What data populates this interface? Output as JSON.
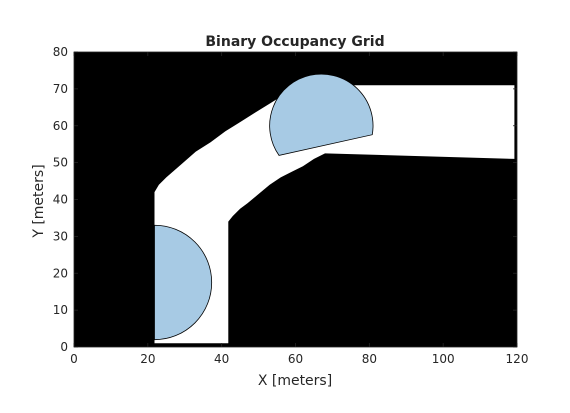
{
  "chart_data": {
    "type": "heatmap",
    "title": "Binary Occupancy Grid",
    "xlabel": "X [meters]",
    "ylabel": "Y [meters]",
    "xlim": [
      0,
      120
    ],
    "ylim": [
      0,
      80
    ],
    "x_ticks": [
      "0",
      "20",
      "40",
      "60",
      "80",
      "100",
      "120"
    ],
    "y_ticks": [
      "0",
      "10",
      "20",
      "30",
      "40",
      "50",
      "60",
      "70",
      "80"
    ],
    "grid": false,
    "legend": "none",
    "cell_values": {
      "occupied": 1,
      "free": 0
    },
    "colors": {
      "occupied": "#000000",
      "free": "#ffffff",
      "highlight": "#a7cae4",
      "axis": "#262626"
    },
    "free_regions": [
      {
        "name": "lower-vertical-corridor",
        "polygon": [
          [
            21.8,
            1
          ],
          [
            41.8,
            1
          ],
          [
            41.8,
            34
          ],
          [
            43,
            35.5
          ],
          [
            45,
            37.5
          ],
          [
            47,
            39
          ],
          [
            50,
            41.5
          ],
          [
            53,
            44
          ],
          [
            56,
            46
          ],
          [
            59,
            47.5
          ],
          [
            62,
            49
          ],
          [
            65,
            51
          ],
          [
            68,
            52.5
          ],
          [
            119.3,
            51
          ],
          [
            119.3,
            71
          ],
          [
            64,
            71
          ],
          [
            60,
            70
          ],
          [
            57,
            68.5
          ],
          [
            53,
            66
          ],
          [
            49,
            63.5
          ],
          [
            45,
            61
          ],
          [
            41,
            58.5
          ],
          [
            37,
            55.5
          ],
          [
            33,
            53
          ],
          [
            29,
            49.5
          ],
          [
            25,
            46
          ],
          [
            23,
            44
          ],
          [
            21.8,
            42
          ]
        ]
      }
    ],
    "highlight_regions": [
      {
        "name": "lower-half-disc",
        "center": [
          21.8,
          17.5
        ],
        "radius": 15.5,
        "half": "right"
      },
      {
        "name": "upper-rotated-disc",
        "center": [
          67,
          60
        ],
        "radius": 14,
        "arc_deg": [
          -10,
          215
        ]
      }
    ]
  }
}
